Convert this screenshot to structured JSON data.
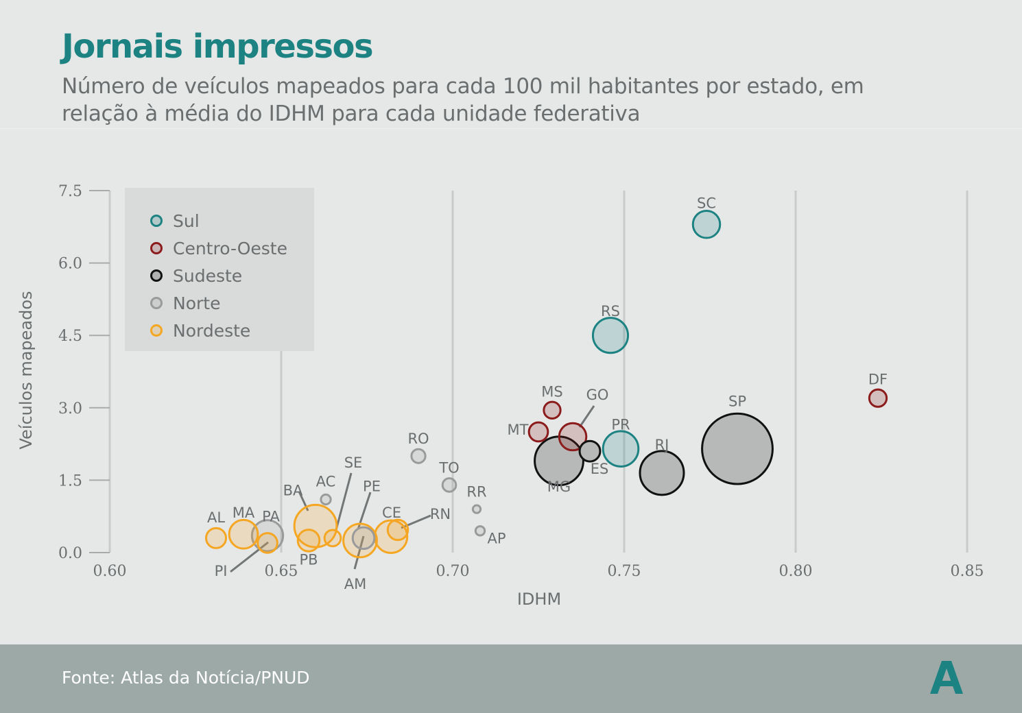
{
  "header": {
    "title": "Jornais impressos",
    "subtitle": "Número de veículos mapeados para cada 100 mil habitantes por estado, em relação à média do IDHM para cada unidade federativa"
  },
  "footer": {
    "source": "Fonte: Atlas da Notícia/PNUD",
    "logo_icon": "atlas-a-logo-icon"
  },
  "colors": {
    "Sul": "#1d8282",
    "Centro-Oeste": "#8c1c1c",
    "Sudeste": "#111111",
    "Norte": "#9a9a9a",
    "Nordeste": "#f5a623"
  },
  "chart_data": {
    "type": "scatter",
    "xlabel": "IDHM",
    "ylabel": "Veículos mapeados",
    "xlim": [
      0.6,
      0.85
    ],
    "ylim": [
      0,
      7.5
    ],
    "xticks": [
      "0.60",
      "0.65",
      "0.70",
      "0.75",
      "0.80",
      "0.85"
    ],
    "yticks": [
      "0.0",
      "1.5",
      "3.0",
      "4.5",
      "6.0",
      "7.5"
    ],
    "grid": "vertical",
    "legend_position": "top-left",
    "legend": [
      "Sul",
      "Centro-Oeste",
      "Sudeste",
      "Norte",
      "Nordeste"
    ],
    "points": [
      {
        "label": "SC",
        "region": "Sul",
        "x": 0.774,
        "y": 6.8,
        "size": 6.1
      },
      {
        "label": "RS",
        "region": "Sul",
        "x": 0.746,
        "y": 4.5,
        "size": 10.2
      },
      {
        "label": "PR",
        "region": "Sul",
        "x": 0.749,
        "y": 2.15,
        "size": 10.4
      },
      {
        "label": "DF",
        "region": "Centro-Oeste",
        "x": 0.824,
        "y": 3.2,
        "size": 2.5
      },
      {
        "label": "MS",
        "region": "Centro-Oeste",
        "x": 0.729,
        "y": 2.95,
        "size": 2.3
      },
      {
        "label": "GO",
        "region": "Centro-Oeste",
        "x": 0.735,
        "y": 2.4,
        "size": 6.1
      },
      {
        "label": "MT",
        "region": "Centro-Oeste",
        "x": 0.725,
        "y": 2.5,
        "size": 3.0
      },
      {
        "label": "SP",
        "region": "Sudeste",
        "x": 0.783,
        "y": 2.15,
        "size": 41.3
      },
      {
        "label": "RJ",
        "region": "Sudeste",
        "x": 0.761,
        "y": 1.65,
        "size": 16.0
      },
      {
        "label": "MG",
        "region": "Sudeste",
        "x": 0.731,
        "y": 1.9,
        "size": 19.6
      },
      {
        "label": "ES",
        "region": "Sudeste",
        "x": 0.74,
        "y": 2.1,
        "size": 3.5
      },
      {
        "label": "RO",
        "region": "Norte",
        "x": 0.69,
        "y": 2.0,
        "size": 1.6
      },
      {
        "label": "TO",
        "region": "Norte",
        "x": 0.699,
        "y": 1.4,
        "size": 1.5
      },
      {
        "label": "RR",
        "region": "Norte",
        "x": 0.707,
        "y": 0.9,
        "size": 0.5
      },
      {
        "label": "AP",
        "region": "Norte",
        "x": 0.708,
        "y": 0.45,
        "size": 0.7
      },
      {
        "label": "AC",
        "region": "Norte",
        "x": 0.663,
        "y": 1.1,
        "size": 0.8
      },
      {
        "label": "PA",
        "region": "Norte",
        "x": 0.646,
        "y": 0.35,
        "size": 8.0
      },
      {
        "label": "AM",
        "region": "Norte",
        "x": 0.674,
        "y": 0.3,
        "size": 3.9
      },
      {
        "label": "AL",
        "region": "Nordeste",
        "x": 0.631,
        "y": 0.3,
        "size": 3.3
      },
      {
        "label": "MA",
        "region": "Nordeste",
        "x": 0.639,
        "y": 0.38,
        "size": 6.8
      },
      {
        "label": "PI",
        "region": "Nordeste",
        "x": 0.646,
        "y": 0.2,
        "size": 3.2
      },
      {
        "label": "PB",
        "region": "Nordeste",
        "x": 0.658,
        "y": 0.25,
        "size": 3.9
      },
      {
        "label": "BA",
        "region": "Nordeste",
        "x": 0.66,
        "y": 0.55,
        "size": 14.9
      },
      {
        "label": "SE",
        "region": "Nordeste",
        "x": 0.665,
        "y": 0.3,
        "size": 2.2
      },
      {
        "label": "PE",
        "region": "Nordeste",
        "x": 0.673,
        "y": 0.25,
        "size": 9.3
      },
      {
        "label": "CE",
        "region": "Nordeste",
        "x": 0.682,
        "y": 0.33,
        "size": 8.8
      },
      {
        "label": "RN",
        "region": "Nordeste",
        "x": 0.684,
        "y": 0.47,
        "size": 3.4
      }
    ]
  }
}
